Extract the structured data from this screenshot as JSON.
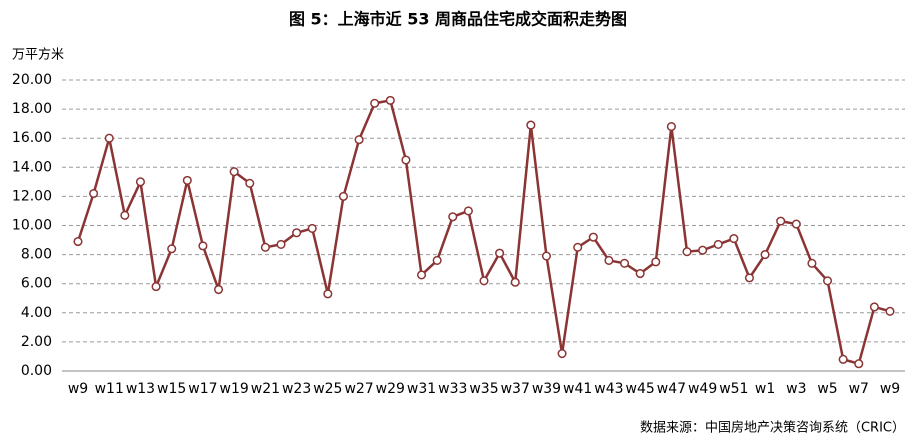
{
  "chart_data": {
    "type": "line",
    "title": "图 5：上海市近 53 周商品住宅成交面积走势图",
    "y_label": "万平方米",
    "source": "数据来源：中国房地产决策咨询系统（CRIC）",
    "categories": [
      "w9",
      null,
      "w11",
      null,
      "w13",
      null,
      "w15",
      null,
      "w17",
      null,
      "w19",
      null,
      "w21",
      null,
      "w23",
      null,
      "w25",
      null,
      "w27",
      null,
      "w29",
      null,
      "w31",
      null,
      "w33",
      null,
      "w35",
      null,
      "w37",
      null,
      "w39",
      null,
      "w41",
      null,
      "w43",
      null,
      "w45",
      null,
      "w47",
      null,
      "w49",
      null,
      "w51",
      null,
      "w1",
      null,
      "w3",
      null,
      "w5",
      null,
      "w7",
      null,
      "w9"
    ],
    "values": [
      8.9,
      12.2,
      16.0,
      10.7,
      13.0,
      5.8,
      8.4,
      13.1,
      8.6,
      5.6,
      13.7,
      12.9,
      8.5,
      8.7,
      9.5,
      9.8,
      5.3,
      12.0,
      15.9,
      18.4,
      18.6,
      14.5,
      6.6,
      7.6,
      10.6,
      11.0,
      6.2,
      8.1,
      6.1,
      16.9,
      7.9,
      1.2,
      8.5,
      9.2,
      7.6,
      7.4,
      6.7,
      7.5,
      16.8,
      8.2,
      8.3,
      8.7,
      9.1,
      6.4,
      8.0,
      10.3,
      10.1,
      7.4,
      6.2,
      0.8,
      0.5,
      4.4,
      4.1
    ],
    "color": "#8b3434",
    "marker_fill": "#ffffff",
    "ylim": [
      0,
      20
    ],
    "yticks": [
      {
        "value": 0,
        "label": "0.00"
      },
      {
        "value": 2,
        "label": "2.00"
      },
      {
        "value": 4,
        "label": "4.00"
      },
      {
        "value": 6,
        "label": "6.00"
      },
      {
        "value": 8,
        "label": "8.00"
      },
      {
        "value": 10,
        "label": "10.00"
      },
      {
        "value": 12,
        "label": "12.00"
      },
      {
        "value": 14,
        "label": "14.00"
      },
      {
        "value": 16,
        "label": "16.00"
      },
      {
        "value": 18,
        "label": "18.00"
      },
      {
        "value": 20,
        "label": "20.00"
      }
    ],
    "grid": true
  }
}
